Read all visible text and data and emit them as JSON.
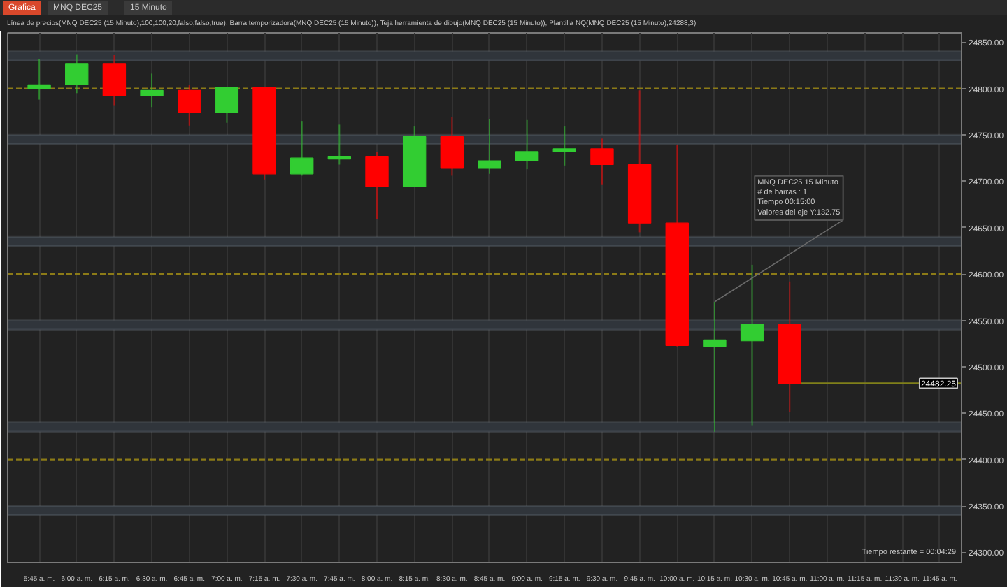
{
  "chart_data": {
    "type": "candlestick",
    "title": "Línea de precios(MNQ DEC25 (15 Minuto),100,100,20,falso,falso,true), Barra temporizadora(MNQ DEC25 (15 Minuto)), Teja herramienta de dibujo(MNQ DEC25 (15 Minuto)), Plantilla NQ(MNQ DEC25 (15 Minuto),24288,3)",
    "categories": [
      "5:45 a. m.",
      "6:00 a. m.",
      "6:15 a. m.",
      "6:30 a. m.",
      "6:45 a. m.",
      "7:00 a. m.",
      "7:15 a. m.",
      "7:30 a. m.",
      "7:45 a. m.",
      "8:00 a. m.",
      "8:15 a. m.",
      "8:30 a. m.",
      "8:45 a. m.",
      "9:00 a. m.",
      "9:15 a. m.",
      "9:30 a. m.",
      "9:45 a. m.",
      "10:00 a. m.",
      "10:15 a. m.",
      "10:30 a. m.",
      "10:45 a. m.",
      "11:00 a. m.",
      "11:15 a. m.",
      "11:30 a. m.",
      "11:45 a. m."
    ],
    "ohlc": [
      [
        24800,
        24832,
        24788,
        24804
      ],
      [
        24804,
        24837,
        24795,
        24827
      ],
      [
        24827,
        24836,
        24782,
        24792
      ],
      [
        24792,
        24816,
        24780,
        24798
      ],
      [
        24798,
        24804,
        24760,
        24774
      ],
      [
        24774,
        24802,
        24763,
        24801
      ],
      [
        24801,
        24802,
        24702,
        24708
      ],
      [
        24708,
        24765,
        24706,
        24725
      ],
      [
        24724,
        24761,
        24718,
        24727
      ],
      [
        24727,
        24732,
        24659,
        24694
      ],
      [
        24694,
        24759,
        24694,
        24748
      ],
      [
        24748,
        24769,
        24706,
        24714
      ],
      [
        24714,
        24767,
        24708,
        24722
      ],
      [
        24722,
        24766,
        24713,
        24732
      ],
      [
        24732,
        24759,
        24717,
        24735
      ],
      [
        24735,
        24746,
        24696,
        24718
      ],
      [
        24718,
        24798,
        24645,
        24655
      ],
      [
        24655,
        24739,
        24522,
        24523
      ],
      [
        24522,
        24570,
        24430,
        24529
      ],
      [
        24528,
        24610,
        24437,
        24546
      ],
      [
        24546,
        24592,
        24451,
        24482.25
      ],
      null,
      null,
      null,
      null
    ],
    "colors": [
      "#32cd32",
      "#32cd32",
      "#ff0000",
      "#32cd32",
      "#ff0000",
      "#32cd32",
      "#ff0000",
      "#32cd32",
      "#32cd32",
      "#ff0000",
      "#32cd32",
      "#ff0000",
      "#32cd32",
      "#32cd32",
      "#32cd32",
      "#ff0000",
      "#ff0000",
      "#ff0000",
      "#32cd32",
      "#32cd32",
      "#ff0000",
      null,
      null,
      null,
      null
    ],
    "ylim": [
      24289,
      24860
    ],
    "yticks": [
      {
        "value": 24300,
        "label": "24300.00"
      },
      {
        "value": 24350,
        "label": "24350.00"
      },
      {
        "value": 24400,
        "label": "24400.00"
      },
      {
        "value": 24450,
        "label": "24450.00"
      },
      {
        "value": 24500,
        "label": "24500.00"
      },
      {
        "value": 24550,
        "label": "24550.00"
      },
      {
        "value": 24600,
        "label": "24600.00"
      },
      {
        "value": 24650,
        "label": "24650.00"
      },
      {
        "value": 24700,
        "label": "24700.00"
      },
      {
        "value": 24750,
        "label": "24750.00"
      },
      {
        "value": 24800,
        "label": "24800.00"
      },
      {
        "value": 24850,
        "label": "24850.00"
      }
    ],
    "grid": "x",
    "bands": [
      {
        "axis": "y",
        "from": 24830,
        "to": 24840,
        "color": "#6b757f"
      },
      {
        "axis": "y",
        "from": 24740,
        "to": 24750,
        "color": "#6b757f"
      },
      {
        "axis": "y",
        "from": 24630,
        "to": 24640,
        "color": "#6b757f"
      },
      {
        "axis": "y",
        "from": 24540,
        "to": 24550,
        "color": "#6b757f"
      },
      {
        "axis": "y",
        "from": 24430,
        "to": 24440,
        "color": "#6b757f"
      },
      {
        "axis": "y",
        "from": 24340,
        "to": 24350,
        "color": "#6b757f"
      }
    ],
    "ref_lines": [
      {
        "axis": "y",
        "value": 24800,
        "color": "#8c7b17",
        "line_style": "dashed"
      },
      {
        "axis": "y",
        "value": 24600,
        "color": "#8c7b17",
        "line_style": "dashed"
      },
      {
        "axis": "y",
        "value": 24400,
        "color": "#8c7b17",
        "line_style": "dashed"
      },
      {
        "axis": "y",
        "value": 24482.25,
        "label": "24482.25",
        "color": "#80801a",
        "line_style": "solid"
      }
    ],
    "annotations": [
      "Grafica",
      "MNQ DEC25",
      "15 Minuto",
      "Tiempo restante = 00:04:29",
      {
        "text": "MNQ DEC25 15 Minuto\n# de barras : 1\nTiempo   00:15:00\nValores del eje Y:132.75",
        "x": "10:15 a. m.",
        "y": 24570
      }
    ]
  }
}
